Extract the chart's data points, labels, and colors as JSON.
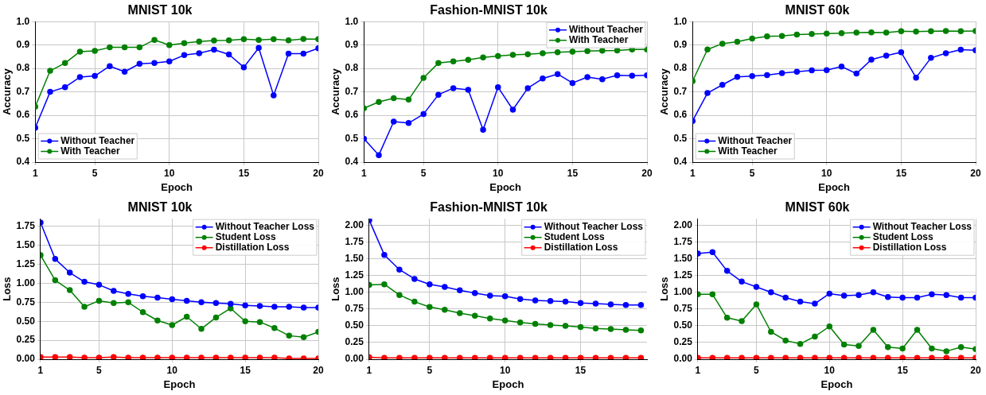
{
  "chart_data": [
    {
      "type": "line",
      "title": "MNIST 10k",
      "xlabel": "Epoch",
      "ylabel": "Accuracy",
      "x": [
        1,
        2,
        3,
        4,
        5,
        6,
        7,
        8,
        9,
        10,
        11,
        12,
        13,
        14,
        15,
        16,
        17,
        18,
        19,
        20
      ],
      "xlim": [
        1,
        20
      ],
      "xticks": [
        1,
        5,
        10,
        15,
        20
      ],
      "ylim": [
        0.4,
        1.0
      ],
      "yticks": [
        {
          "value": 0.4,
          "label": "0.4"
        },
        {
          "value": 0.5,
          "label": "0.5"
        },
        {
          "value": 0.6,
          "label": "0.6"
        },
        {
          "value": 0.7,
          "label": "0.7"
        },
        {
          "value": 0.8,
          "label": "0.8"
        },
        {
          "value": 0.9,
          "label": "0.9"
        },
        {
          "value": 1.0,
          "label": "1.0"
        }
      ],
      "grid": true,
      "legend": "bottom left",
      "marker": "circle",
      "line_style": "solid",
      "series": [
        {
          "name": "Without Teacher",
          "color": "#0000ff",
          "values": [
            0.547,
            0.7,
            0.72,
            0.763,
            0.768,
            0.81,
            0.786,
            0.82,
            0.823,
            0.83,
            0.857,
            0.865,
            0.88,
            0.86,
            0.805,
            0.888,
            0.685,
            0.863,
            0.863,
            0.886
          ]
        },
        {
          "name": "With Teacher",
          "color": "#008000",
          "values": [
            0.637,
            0.79,
            0.823,
            0.872,
            0.875,
            0.89,
            0.89,
            0.89,
            0.922,
            0.9,
            0.908,
            0.915,
            0.919,
            0.92,
            0.925,
            0.922,
            0.925,
            0.92,
            0.926,
            0.925
          ]
        }
      ]
    },
    {
      "type": "line",
      "title": "Fashion-MNIST 10k",
      "xlabel": "Epoch",
      "ylabel": "Accuracy",
      "x": [
        1,
        2,
        3,
        4,
        5,
        6,
        7,
        8,
        9,
        10,
        11,
        12,
        13,
        14,
        15,
        16,
        17,
        18,
        19,
        20
      ],
      "xlim": [
        1,
        20
      ],
      "xticks": [
        1,
        5,
        10,
        15,
        20
      ],
      "ylim": [
        0.4,
        1.0
      ],
      "yticks": [
        {
          "value": 0.4,
          "label": "0.4"
        },
        {
          "value": 0.5,
          "label": "0.5"
        },
        {
          "value": 0.6,
          "label": "0.6"
        },
        {
          "value": 0.7,
          "label": "0.7"
        },
        {
          "value": 0.8,
          "label": "0.8"
        },
        {
          "value": 0.9,
          "label": "0.9"
        },
        {
          "value": 1.0,
          "label": "1.0"
        }
      ],
      "grid": true,
      "legend": "top right",
      "marker": "circle",
      "line_style": "solid",
      "series": [
        {
          "name": "Without Teacher",
          "color": "#0000ff",
          "values": [
            0.5,
            0.43,
            0.573,
            0.567,
            0.605,
            0.688,
            0.716,
            0.709,
            0.538,
            0.72,
            0.624,
            0.716,
            0.757,
            0.776,
            0.738,
            0.763,
            0.754,
            0.771,
            0.769,
            0.771
          ]
        },
        {
          "name": "With Teacher",
          "color": "#008000",
          "values": [
            0.63,
            0.657,
            0.673,
            0.667,
            0.76,
            0.823,
            0.83,
            0.837,
            0.847,
            0.853,
            0.858,
            0.861,
            0.865,
            0.869,
            0.872,
            0.874,
            0.876,
            0.877,
            0.881,
            0.881
          ]
        }
      ]
    },
    {
      "type": "line",
      "title": "MNIST 60k",
      "xlabel": "Epoch",
      "ylabel": "Accuracy",
      "x": [
        1,
        2,
        3,
        4,
        5,
        6,
        7,
        8,
        9,
        10,
        11,
        12,
        13,
        14,
        15,
        16,
        17,
        18,
        19,
        20
      ],
      "xlim": [
        1,
        20
      ],
      "xticks": [
        1,
        5,
        10,
        15,
        20
      ],
      "ylim": [
        0.4,
        1.0
      ],
      "yticks": [
        {
          "value": 0.4,
          "label": "0.4"
        },
        {
          "value": 0.5,
          "label": "0.5"
        },
        {
          "value": 0.6,
          "label": "0.6"
        },
        {
          "value": 0.7,
          "label": "0.7"
        },
        {
          "value": 0.8,
          "label": "0.8"
        },
        {
          "value": 0.9,
          "label": "0.9"
        },
        {
          "value": 1.0,
          "label": "1.0"
        }
      ],
      "grid": true,
      "legend": "bottom left",
      "marker": "circle",
      "line_style": "solid",
      "series": [
        {
          "name": "Without Teacher",
          "color": "#0000ff",
          "values": [
            0.576,
            0.695,
            0.73,
            0.764,
            0.767,
            0.772,
            0.78,
            0.786,
            0.792,
            0.793,
            0.808,
            0.778,
            0.838,
            0.855,
            0.869,
            0.761,
            0.845,
            0.865,
            0.88,
            0.878
          ]
        },
        {
          "name": "With Teacher",
          "color": "#008000",
          "values": [
            0.746,
            0.881,
            0.906,
            0.914,
            0.928,
            0.937,
            0.939,
            0.945,
            0.947,
            0.949,
            0.951,
            0.953,
            0.954,
            0.953,
            0.959,
            0.957,
            0.959,
            0.96,
            0.959,
            0.96
          ]
        }
      ]
    },
    {
      "type": "line",
      "title": "MNIST 10k",
      "xlabel": "Epoch",
      "ylabel": "Loss",
      "x": [
        1,
        2,
        3,
        4,
        5,
        6,
        7,
        8,
        9,
        10,
        11,
        12,
        13,
        14,
        15,
        16,
        17,
        18,
        19,
        20
      ],
      "xlim": [
        1,
        20
      ],
      "xticks": [
        1,
        5,
        10,
        15,
        20
      ],
      "ylim": [
        0,
        1.85
      ],
      "yticks": [
        {
          "value": 0,
          "label": "0.00"
        },
        {
          "value": 0.25,
          "label": "0.25"
        },
        {
          "value": 0.5,
          "label": "0.50"
        },
        {
          "value": 0.75,
          "label": "0.75"
        },
        {
          "value": 1,
          "label": "1.00"
        },
        {
          "value": 1.25,
          "label": "1.25"
        },
        {
          "value": 1.5,
          "label": "1.50"
        },
        {
          "value": 1.75,
          "label": "1.75"
        }
      ],
      "grid": true,
      "legend": "top right",
      "marker": "circle",
      "line_style": "solid",
      "series": [
        {
          "name": "Without Teacher Loss",
          "color": "#0000ff",
          "values": [
            1.8,
            1.32,
            1.14,
            1.02,
            0.98,
            0.9,
            0.86,
            0.83,
            0.81,
            0.79,
            0.77,
            0.75,
            0.74,
            0.73,
            0.71,
            0.7,
            0.69,
            0.69,
            0.68,
            0.68
          ]
        },
        {
          "name": "Student Loss",
          "color": "#008000",
          "values": [
            1.37,
            1.04,
            0.91,
            0.69,
            0.77,
            0.74,
            0.75,
            0.62,
            0.51,
            0.45,
            0.56,
            0.4,
            0.55,
            0.67,
            0.5,
            0.49,
            0.41,
            0.31,
            0.29,
            0.36
          ]
        },
        {
          "name": "Distillation Loss",
          "color": "#ff0000",
          "values": [
            0.03,
            0.03,
            0.03,
            0.02,
            0.02,
            0.03,
            0.02,
            0.02,
            0.02,
            0.02,
            0.02,
            0.02,
            0.02,
            0.02,
            0.02,
            0.02,
            0.02,
            0.01,
            0.01,
            0.01
          ]
        }
      ]
    },
    {
      "type": "line",
      "title": "Fashion-MNIST 10k",
      "xlabel": "Epoch",
      "ylabel": "Loss",
      "x": [
        1,
        2,
        3,
        4,
        5,
        6,
        7,
        8,
        9,
        10,
        11,
        12,
        13,
        14,
        15,
        16,
        17,
        18,
        19
      ],
      "xlim": [
        1,
        19.4
      ],
      "xticks": [
        1,
        5,
        10,
        15
      ],
      "ylim": [
        0,
        2.1
      ],
      "yticks": [
        {
          "value": 0,
          "label": "0.00"
        },
        {
          "value": 0.25,
          "label": "0.25"
        },
        {
          "value": 0.5,
          "label": "0.50"
        },
        {
          "value": 0.75,
          "label": "0.75"
        },
        {
          "value": 1,
          "label": "1.00"
        },
        {
          "value": 1.25,
          "label": "1.25"
        },
        {
          "value": 1.5,
          "label": "1.50"
        },
        {
          "value": 1.75,
          "label": "1.75"
        },
        {
          "value": 2,
          "label": "2.00"
        }
      ],
      "grid": true,
      "legend": "top right",
      "marker": "circle",
      "line_style": "solid",
      "series": [
        {
          "name": "Without Teacher Loss",
          "color": "#0000ff",
          "values": [
            2.08,
            1.56,
            1.34,
            1.2,
            1.12,
            1.08,
            1.03,
            0.99,
            0.95,
            0.94,
            0.9,
            0.88,
            0.87,
            0.86,
            0.84,
            0.83,
            0.82,
            0.81,
            0.81
          ]
        },
        {
          "name": "Student Loss",
          "color": "#008000",
          "values": [
            1.11,
            1.12,
            0.96,
            0.86,
            0.78,
            0.74,
            0.69,
            0.65,
            0.61,
            0.58,
            0.55,
            0.53,
            0.51,
            0.5,
            0.48,
            0.46,
            0.45,
            0.44,
            0.43
          ]
        },
        {
          "name": "Distillation Loss",
          "color": "#ff0000",
          "values": [
            0.03,
            0.02,
            0.02,
            0.02,
            0.02,
            0.02,
            0.02,
            0.02,
            0.02,
            0.02,
            0.02,
            0.02,
            0.02,
            0.02,
            0.02,
            0.02,
            0.02,
            0.02,
            0.02
          ]
        }
      ]
    },
    {
      "type": "line",
      "title": "MNIST 60k",
      "xlabel": "Epoch",
      "ylabel": "Loss",
      "x": [
        1,
        2,
        3,
        4,
        5,
        6,
        7,
        8,
        9,
        10,
        11,
        12,
        13,
        14,
        15,
        16,
        17,
        18,
        19,
        20
      ],
      "xlim": [
        1,
        20
      ],
      "xticks": [
        1,
        5,
        10,
        15,
        20
      ],
      "ylim": [
        0,
        2.1
      ],
      "yticks": [
        {
          "value": 0,
          "label": "0.00"
        },
        {
          "value": 0.25,
          "label": "0.25"
        },
        {
          "value": 0.5,
          "label": "0.50"
        },
        {
          "value": 0.75,
          "label": "0.75"
        },
        {
          "value": 1,
          "label": "1.00"
        },
        {
          "value": 1.25,
          "label": "1.25"
        },
        {
          "value": 1.5,
          "label": "1.50"
        },
        {
          "value": 1.75,
          "label": "1.75"
        },
        {
          "value": 2,
          "label": "2.00"
        }
      ],
      "grid": true,
      "legend": "top right",
      "marker": "circle",
      "line_style": "solid",
      "series": [
        {
          "name": "Without Teacher Loss",
          "color": "#0000ff",
          "values": [
            1.58,
            1.6,
            1.32,
            1.16,
            1.08,
            1.0,
            0.92,
            0.86,
            0.83,
            0.98,
            0.95,
            0.96,
            1.0,
            0.93,
            0.92,
            0.92,
            0.97,
            0.96,
            0.92,
            0.92
          ]
        },
        {
          "name": "Student Loss",
          "color": "#008000",
          "values": [
            0.97,
            0.97,
            0.62,
            0.57,
            0.82,
            0.41,
            0.28,
            0.23,
            0.34,
            0.49,
            0.22,
            0.2,
            0.44,
            0.18,
            0.16,
            0.44,
            0.16,
            0.12,
            0.18,
            0.15
          ]
        },
        {
          "name": "Distillation Loss",
          "color": "#ff0000",
          "values": [
            0.02,
            0.02,
            0.02,
            0.02,
            0.02,
            0.02,
            0.02,
            0.02,
            0.02,
            0.02,
            0.02,
            0.02,
            0.02,
            0.02,
            0.02,
            0.02,
            0.02,
            0.02,
            0.02,
            0.02
          ]
        }
      ]
    }
  ]
}
